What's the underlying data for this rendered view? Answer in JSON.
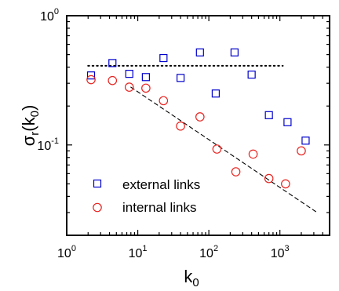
{
  "chart_data": {
    "type": "scatter",
    "xscale": "log",
    "yscale": "log",
    "xlim": [
      1,
      5000
    ],
    "ylim": [
      0.02,
      1
    ],
    "xlabel": {
      "base": "k",
      "sub": "0"
    },
    "ylabel": {
      "base": "σ",
      "sub1": "r",
      "mid": "(k",
      "sub2": "0",
      "end": ")"
    },
    "x_ticks": [
      {
        "value": 1,
        "base": "10",
        "exp": "0"
      },
      {
        "value": 10,
        "base": "10",
        "exp": "1"
      },
      {
        "value": 100,
        "base": "10",
        "exp": "2"
      },
      {
        "value": 1000,
        "base": "10",
        "exp": "3"
      }
    ],
    "y_ticks": [
      {
        "value": 1,
        "base": "10",
        "exp": "0"
      },
      {
        "value": 0.1,
        "base": "10",
        "exp": "-1"
      }
    ],
    "series": [
      {
        "name": "external links",
        "marker": "square",
        "color": "#0000cc",
        "points": [
          {
            "x": 2.2,
            "y": 0.345
          },
          {
            "x": 4.4,
            "y": 0.43
          },
          {
            "x": 7.6,
            "y": 0.355
          },
          {
            "x": 13,
            "y": 0.335
          },
          {
            "x": 23,
            "y": 0.47
          },
          {
            "x": 40,
            "y": 0.33
          },
          {
            "x": 75,
            "y": 0.52
          },
          {
            "x": 125,
            "y": 0.25
          },
          {
            "x": 230,
            "y": 0.52
          },
          {
            "x": 400,
            "y": 0.35
          },
          {
            "x": 700,
            "y": 0.17
          },
          {
            "x": 1280,
            "y": 0.15
          },
          {
            "x": 2300,
            "y": 0.108
          }
        ]
      },
      {
        "name": "internal links",
        "marker": "circle",
        "color": "#e8231f",
        "points": [
          {
            "x": 2.2,
            "y": 0.32
          },
          {
            "x": 4.4,
            "y": 0.315
          },
          {
            "x": 7.6,
            "y": 0.28
          },
          {
            "x": 13,
            "y": 0.275
          },
          {
            "x": 23,
            "y": 0.22
          },
          {
            "x": 40,
            "y": 0.14
          },
          {
            "x": 75,
            "y": 0.165
          },
          {
            "x": 130,
            "y": 0.093
          },
          {
            "x": 240,
            "y": 0.062
          },
          {
            "x": 420,
            "y": 0.085
          },
          {
            "x": 700,
            "y": 0.055
          },
          {
            "x": 1200,
            "y": 0.05
          },
          {
            "x": 2000,
            "y": 0.09
          }
        ]
      }
    ],
    "reference_lines": [
      {
        "style": "dotted",
        "x": [
          2,
          1100
        ],
        "y": [
          0.41,
          0.41
        ]
      },
      {
        "style": "dashed",
        "x": [
          8,
          3200
        ],
        "y": [
          0.28,
          0.0305
        ]
      }
    ],
    "legend": {
      "position": "bottom-left",
      "entries": [
        "external links",
        "internal links"
      ]
    }
  }
}
